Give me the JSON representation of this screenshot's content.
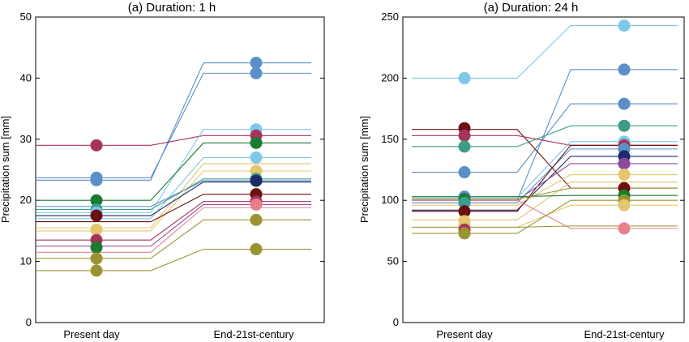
{
  "chart_data": [
    {
      "type": "slope",
      "title": "(a) Duration: 1 h",
      "ylabel": "Precipitation sum [mm]",
      "categories": [
        "Present day",
        "End-21st-century"
      ],
      "ylim": [
        0,
        50
      ],
      "yticks": [
        0,
        10,
        20,
        30,
        40,
        50
      ],
      "series": [
        {
          "values": [
            23.3,
            42.5
          ],
          "color": "#5b8fc7"
        },
        {
          "values": [
            23.7,
            40.8
          ],
          "color": "#5b8fc7"
        },
        {
          "values": [
            29.0,
            30.6
          ],
          "color": "#a9325c"
        },
        {
          "values": [
            18.0,
            31.6
          ],
          "color": "#7ec8ea"
        },
        {
          "values": [
            20.0,
            29.4
          ],
          "color": "#1a7a2e"
        },
        {
          "values": [
            17.0,
            27.0
          ],
          "color": "#7ec8ea"
        },
        {
          "values": [
            15.5,
            26.0
          ],
          "color": "#e4c66e"
        },
        {
          "values": [
            15.0,
            24.8
          ],
          "color": "#e4c66e"
        },
        {
          "values": [
            18.5,
            23.5
          ],
          "color": "#3a9e8a"
        },
        {
          "values": [
            19.0,
            23.2
          ],
          "color": "#5b8fc7"
        },
        {
          "values": [
            17.5,
            23.0
          ],
          "color": "#1f2a6b"
        },
        {
          "values": [
            16.5,
            21.0
          ],
          "color": "#6b1010"
        },
        {
          "values": [
            13.5,
            19.8
          ],
          "color": "#a9325c"
        },
        {
          "values": [
            12.5,
            19.3
          ],
          "color": "#8a4a9e"
        },
        {
          "values": [
            11.5,
            18.8
          ],
          "color": "#e8808a"
        },
        {
          "values": [
            10.5,
            16.8
          ],
          "color": "#9a9430"
        },
        {
          "values": [
            8.5,
            12.0
          ],
          "color": "#9a9430"
        }
      ],
      "markers": {
        "present": [
          {
            "y": 29.0,
            "color": "#a9325c"
          },
          {
            "y": 23.3,
            "color": "#5b8fc7"
          },
          {
            "y": 23.7,
            "color": "#5b8fc7"
          },
          {
            "y": 20.0,
            "color": "#1a7a2e"
          },
          {
            "y": 18.5,
            "color": "#3a9e8a"
          },
          {
            "y": 18.0,
            "color": "#7ec8ea"
          },
          {
            "y": 17.5,
            "color": "#6b1010"
          },
          {
            "y": 15.2,
            "color": "#e4c66e"
          },
          {
            "y": 13.5,
            "color": "#a9325c"
          },
          {
            "y": 12.3,
            "color": "#1a7a2e"
          },
          {
            "y": 10.5,
            "color": "#9a9430"
          },
          {
            "y": 8.5,
            "color": "#9a9430"
          }
        ],
        "future": [
          {
            "y": 42.5,
            "color": "#5b8fc7"
          },
          {
            "y": 40.8,
            "color": "#5b8fc7"
          },
          {
            "y": 31.6,
            "color": "#7ec8ea"
          },
          {
            "y": 30.6,
            "color": "#a9325c"
          },
          {
            "y": 29.4,
            "color": "#1a7a2e"
          },
          {
            "y": 27.0,
            "color": "#7ec8ea"
          },
          {
            "y": 24.8,
            "color": "#e4c66e"
          },
          {
            "y": 23.5,
            "color": "#3a9e8a"
          },
          {
            "y": 23.2,
            "color": "#1f2a6b"
          },
          {
            "y": 21.0,
            "color": "#6b1010"
          },
          {
            "y": 19.8,
            "color": "#a9325c"
          },
          {
            "y": 19.3,
            "color": "#e8808a"
          },
          {
            "y": 16.8,
            "color": "#9a9430"
          },
          {
            "y": 12.0,
            "color": "#9a9430"
          }
        ]
      }
    },
    {
      "type": "slope",
      "title": "(a) Duration: 24 h",
      "ylabel": "Precipitation sum [mm]",
      "categories": [
        "Present day",
        "End-21st-century"
      ],
      "ylim": [
        0,
        250
      ],
      "yticks": [
        0,
        50,
        100,
        150,
        200,
        250
      ],
      "series": [
        {
          "values": [
            200,
            243
          ],
          "color": "#7ec8ea"
        },
        {
          "values": [
            100,
            207
          ],
          "color": "#5b8fc7"
        },
        {
          "values": [
            123,
            179
          ],
          "color": "#5b8fc7"
        },
        {
          "values": [
            144,
            161
          ],
          "color": "#3a9e8a"
        },
        {
          "values": [
            158,
            110
          ],
          "color": "#6b1010"
        },
        {
          "values": [
            153,
            145
          ],
          "color": "#a9325c"
        },
        {
          "values": [
            102,
            148
          ],
          "color": "#7ec8ea"
        },
        {
          "values": [
            98,
            142
          ],
          "color": "#5b8fc7"
        },
        {
          "values": [
            92,
            136
          ],
          "color": "#1f2a6b"
        },
        {
          "values": [
            91,
            145
          ],
          "color": "#6b1010"
        },
        {
          "values": [
            100,
            130
          ],
          "color": "#8a4a9e"
        },
        {
          "values": [
            96,
            121
          ],
          "color": "#e4c66e"
        },
        {
          "values": [
            84,
            115
          ],
          "color": "#e4c66e"
        },
        {
          "values": [
            103,
            104
          ],
          "color": "#1a7a2e"
        },
        {
          "values": [
            101,
            110
          ],
          "color": "#9a9430"
        },
        {
          "values": [
            78,
            96
          ],
          "color": "#e4c66e"
        },
        {
          "values": [
            73,
            100
          ],
          "color": "#9a9430"
        },
        {
          "values": [
            100,
            77
          ],
          "color": "#e8808a"
        },
        {
          "values": [
            78,
            79
          ],
          "color": "#9a9430"
        }
      ],
      "markers": {
        "present": [
          {
            "y": 200,
            "color": "#7ec8ea"
          },
          {
            "y": 159,
            "color": "#6b1010"
          },
          {
            "y": 153,
            "color": "#a9325c"
          },
          {
            "y": 144,
            "color": "#3a9e8a"
          },
          {
            "y": 123,
            "color": "#5b8fc7"
          },
          {
            "y": 103,
            "color": "#5b8fc7"
          },
          {
            "y": 101,
            "color": "#1a7a2e"
          },
          {
            "y": 98,
            "color": "#3a9e8a"
          },
          {
            "y": 91,
            "color": "#6b1010"
          },
          {
            "y": 83,
            "color": "#e4c66e"
          },
          {
            "y": 79,
            "color": "#e4c66e"
          },
          {
            "y": 76,
            "color": "#a9325c"
          },
          {
            "y": 73,
            "color": "#9a9430"
          }
        ],
        "future": [
          {
            "y": 243,
            "color": "#7ec8ea"
          },
          {
            "y": 207,
            "color": "#5b8fc7"
          },
          {
            "y": 179,
            "color": "#5b8fc7"
          },
          {
            "y": 161,
            "color": "#3a9e8a"
          },
          {
            "y": 148,
            "color": "#7ec8ea"
          },
          {
            "y": 145,
            "color": "#a9325c"
          },
          {
            "y": 142,
            "color": "#5b8fc7"
          },
          {
            "y": 136,
            "color": "#1f2a6b"
          },
          {
            "y": 130,
            "color": "#8a4a9e"
          },
          {
            "y": 121,
            "color": "#e4c66e"
          },
          {
            "y": 110,
            "color": "#6b1010"
          },
          {
            "y": 104,
            "color": "#1a7a2e"
          },
          {
            "y": 100,
            "color": "#9a9430"
          },
          {
            "y": 96,
            "color": "#e4c66e"
          },
          {
            "y": 77,
            "color": "#e8808a"
          }
        ]
      }
    }
  ]
}
